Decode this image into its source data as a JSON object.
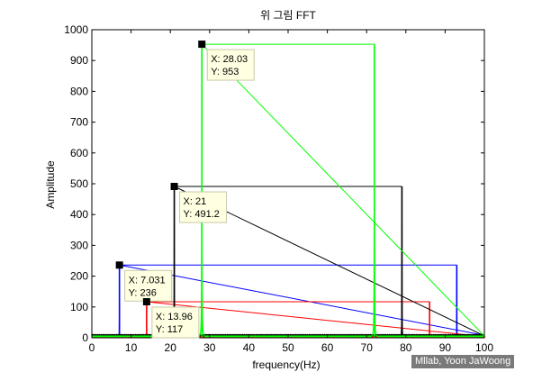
{
  "chart_data": {
    "type": "line",
    "title": "위 그림 FFT",
    "xlabel": "frequency(Hz)",
    "ylabel": "Amplitude",
    "xlim": [
      0,
      100
    ],
    "ylim": [
      0,
      1000
    ],
    "xticks": [
      0,
      10,
      20,
      30,
      40,
      50,
      60,
      70,
      80,
      90,
      100
    ],
    "yticks": [
      0,
      100,
      200,
      300,
      400,
      500,
      600,
      700,
      800,
      900,
      1000
    ],
    "grid": false,
    "series": [
      {
        "color": "#0000ff",
        "baseline": 8,
        "peaks": [
          [
            7.031,
            236
          ],
          [
            92.97,
            236
          ]
        ]
      },
      {
        "color": "#ff0000",
        "baseline": 4,
        "peaks": [
          [
            13.96,
            117
          ],
          [
            86.04,
            117
          ]
        ]
      },
      {
        "color": "#000000",
        "baseline": 10,
        "peaks": [
          [
            21,
            491.2
          ],
          [
            79,
            491.2
          ]
        ]
      },
      {
        "color": "#00ff00",
        "baseline": 6,
        "peaks": [
          [
            28.03,
            953
          ],
          [
            71.97,
            953
          ]
        ]
      }
    ],
    "datatips": [
      {
        "x": 7.031,
        "y": 236,
        "label_x": "X: 7.031",
        "label_y": "Y: 236"
      },
      {
        "x": 13.96,
        "y": 117,
        "label_x": "X: 13.96",
        "label_y": "Y: 117"
      },
      {
        "x": 21,
        "y": 491.2,
        "label_x": "X: 21",
        "label_y": "Y: 491.2"
      },
      {
        "x": 28.03,
        "y": 953,
        "label_x": "X: 28.03",
        "label_y": "Y: 953"
      }
    ]
  },
  "watermark": "Mllab, Yoon JaWoong"
}
